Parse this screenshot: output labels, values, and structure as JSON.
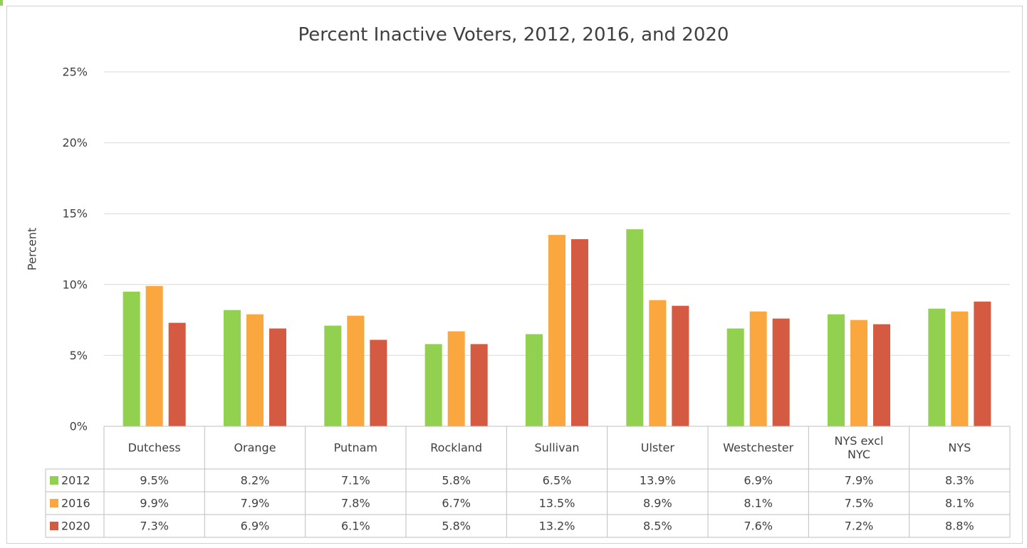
{
  "chart_data": {
    "type": "bar",
    "title": "Percent Inactive Voters, 2012, 2016, and 2020",
    "ylabel": "Percent",
    "xlabel": "",
    "ylim": [
      0,
      25
    ],
    "yticks": [
      0,
      5,
      10,
      15,
      20,
      25
    ],
    "ytick_labels": [
      "0%",
      "5%",
      "10%",
      "15%",
      "20%",
      "25%"
    ],
    "grid": true,
    "legend_placement": "data-table",
    "categories": [
      "Dutchess",
      "Orange",
      "Putnam",
      "Rockland",
      "Sullivan",
      "Ulster",
      "Westchester",
      "NYS excl NYC",
      "NYS"
    ],
    "category_lines": [
      [
        "Dutchess"
      ],
      [
        "Orange"
      ],
      [
        "Putnam"
      ],
      [
        "Rockland"
      ],
      [
        "Sullivan"
      ],
      [
        "Ulster"
      ],
      [
        "Westchester"
      ],
      [
        "NYS excl",
        "NYC"
      ],
      [
        "NYS"
      ]
    ],
    "series": [
      {
        "name": "2012",
        "color": "#92d050",
        "values": [
          9.5,
          8.2,
          7.1,
          5.8,
          6.5,
          13.9,
          6.9,
          7.9,
          8.3
        ],
        "labels": [
          "9.5%",
          "8.2%",
          "7.1%",
          "5.8%",
          "6.5%",
          "13.9%",
          "6.9%",
          "7.9%",
          "8.3%"
        ]
      },
      {
        "name": "2016",
        "color": "#f9a73e",
        "values": [
          9.9,
          7.9,
          7.8,
          6.7,
          13.5,
          8.9,
          8.1,
          7.5,
          8.1
        ],
        "labels": [
          "9.9%",
          "7.9%",
          "7.8%",
          "6.7%",
          "13.5%",
          "8.9%",
          "8.1%",
          "7.5%",
          "8.1%"
        ]
      },
      {
        "name": "2020",
        "color": "#d45a42",
        "values": [
          7.3,
          6.9,
          6.1,
          5.8,
          13.2,
          8.5,
          7.6,
          7.2,
          8.8
        ],
        "labels": [
          "7.3%",
          "6.9%",
          "6.1%",
          "5.8%",
          "13.2%",
          "8.5%",
          "7.6%",
          "7.2%",
          "8.8%"
        ]
      }
    ]
  }
}
